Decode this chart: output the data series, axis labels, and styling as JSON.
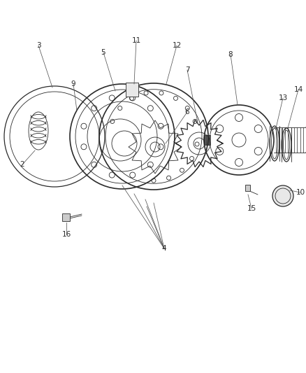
{
  "bg_color": "#ffffff",
  "line_color": "#2a2a2a",
  "label_color": "#2a2a2a",
  "figsize": [
    4.39,
    5.33
  ],
  "dpi": 100
}
